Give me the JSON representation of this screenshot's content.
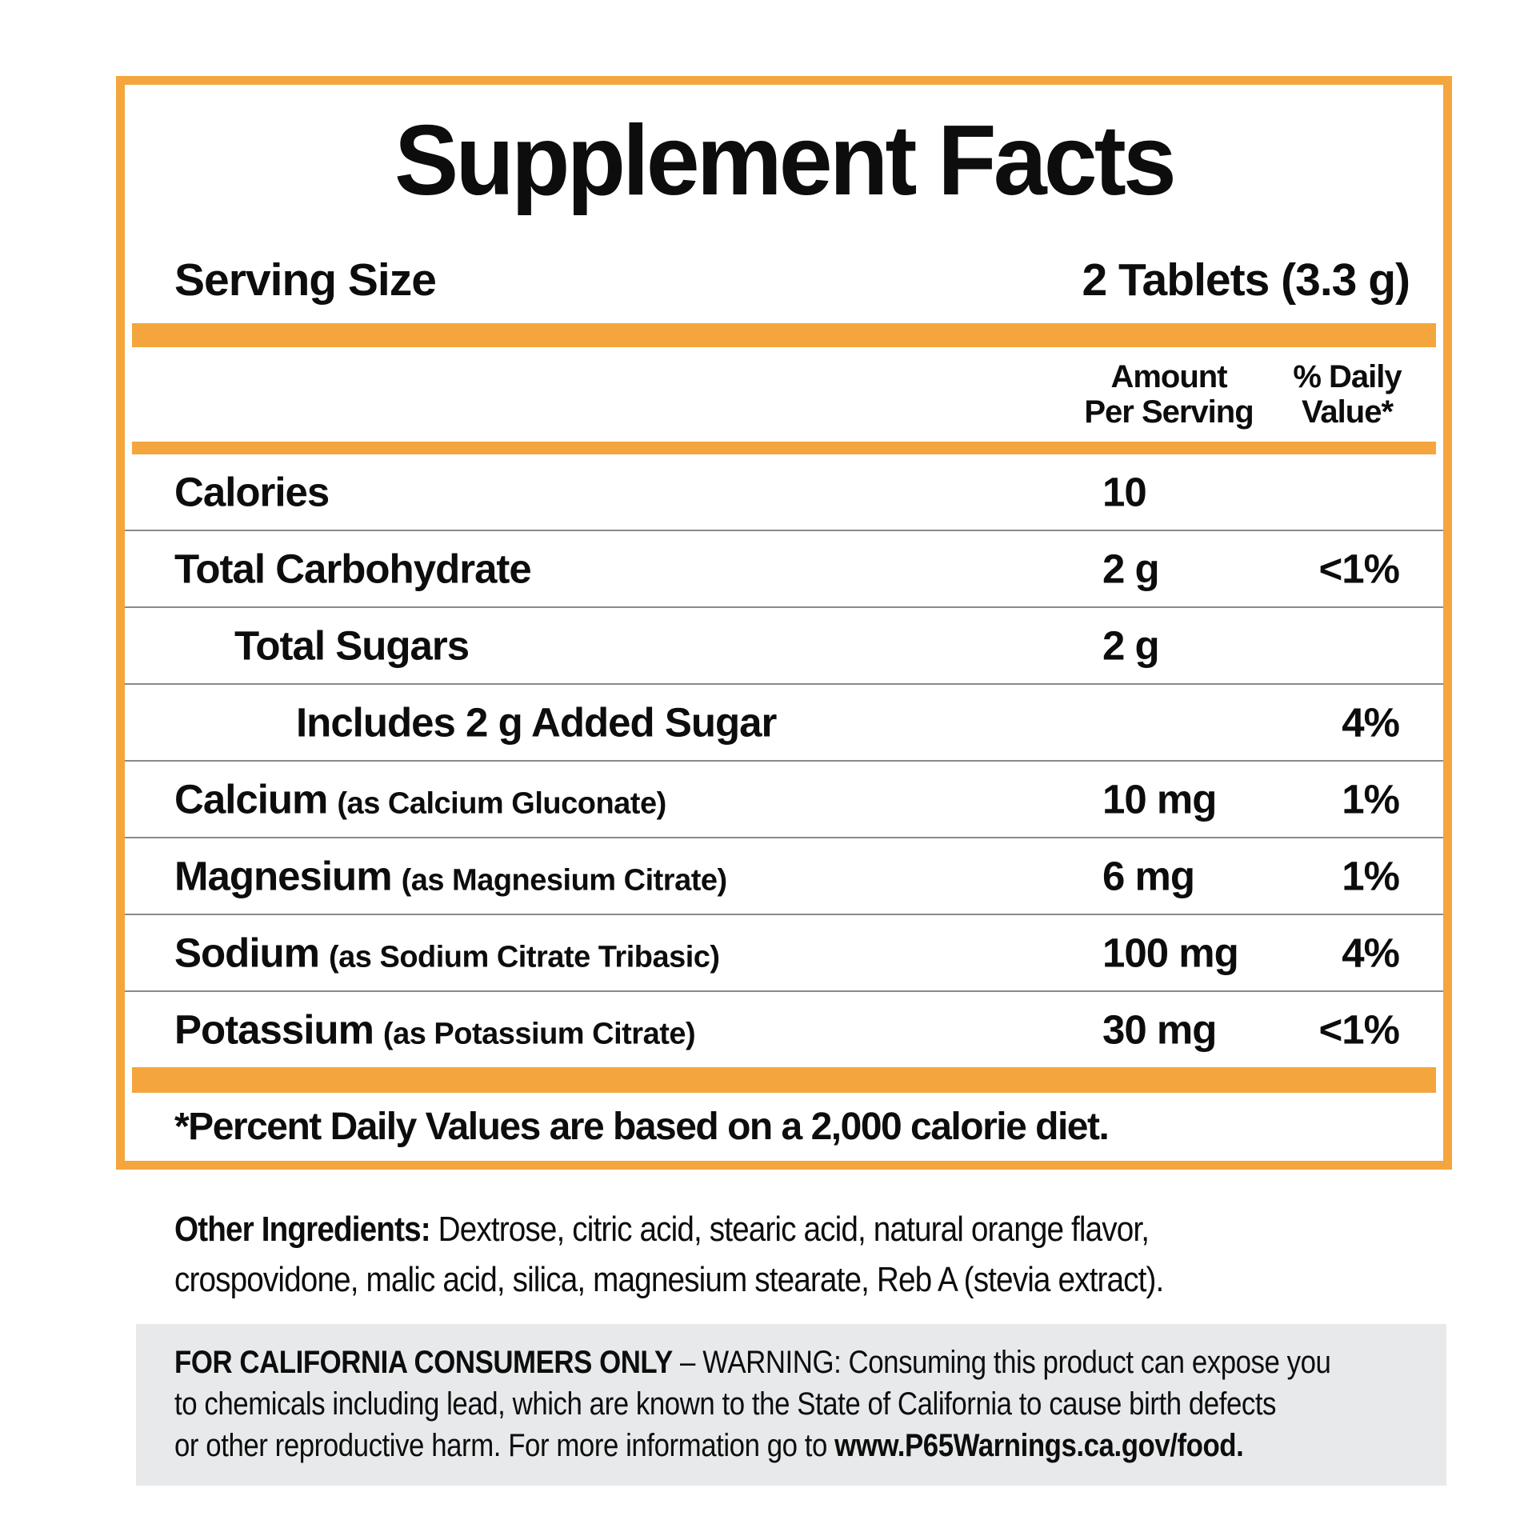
{
  "panel": {
    "title": "Supplement Facts",
    "serving_label": "Serving Size",
    "serving_value": "2 Tablets (3.3 g)",
    "columns": {
      "amount_line1": "Amount",
      "amount_line2": "Per Serving",
      "dv_line1": "% Daily",
      "dv_line2": "Value*"
    },
    "rows": [
      {
        "name": "Calories",
        "detail": "",
        "amount": "10",
        "dv": ""
      },
      {
        "name": "Total Carbohydrate",
        "detail": "",
        "amount": "2 g",
        "dv": "<1%"
      },
      {
        "name": "Total Sugars",
        "detail": "",
        "amount": "2 g",
        "dv": ""
      },
      {
        "name": "Includes 2 g Added Sugar",
        "detail": "",
        "amount": "",
        "dv": "4%"
      },
      {
        "name": "Calcium",
        "detail": "(as Calcium Gluconate)",
        "amount": "10 mg",
        "dv": "1%"
      },
      {
        "name": "Magnesium",
        "detail": "(as Magnesium Citrate)",
        "amount": "6 mg",
        "dv": "1%"
      },
      {
        "name": "Sodium",
        "detail": "(as Sodium Citrate Tribasic)",
        "amount": "100 mg",
        "dv": "4%"
      },
      {
        "name": "Potassium",
        "detail": "(as Potassium Citrate)",
        "amount": "30 mg",
        "dv": "<1%"
      }
    ],
    "footnote": "*Percent Daily Values are based on a 2,000 calorie diet."
  },
  "other_ingredients": {
    "label": "Other Ingredients:",
    "line1_rest": " Dextrose, citric acid, stearic acid, natural orange flavor,",
    "line2": "crospovidone, malic acid, silica, magnesium stearate, Reb A (stevia extract)."
  },
  "california_warning": {
    "intro": "FOR CALIFORNIA CONSUMERS ONLY",
    "separator": " – ",
    "line1_rest": "WARNING: Consuming this product can expose you",
    "line2": "to chemicals including lead, which are known to the State of California to cause birth defects",
    "line3_pre": "or other reproductive harm. For more information go to ",
    "link": "www.P65Warnings.ca.gov/food."
  },
  "colors": {
    "accent_orange": "#F4A53E",
    "divider_gray": "#8A8A8A",
    "warning_bg": "#E7E9EA",
    "text_black": "#0D0D0D"
  }
}
